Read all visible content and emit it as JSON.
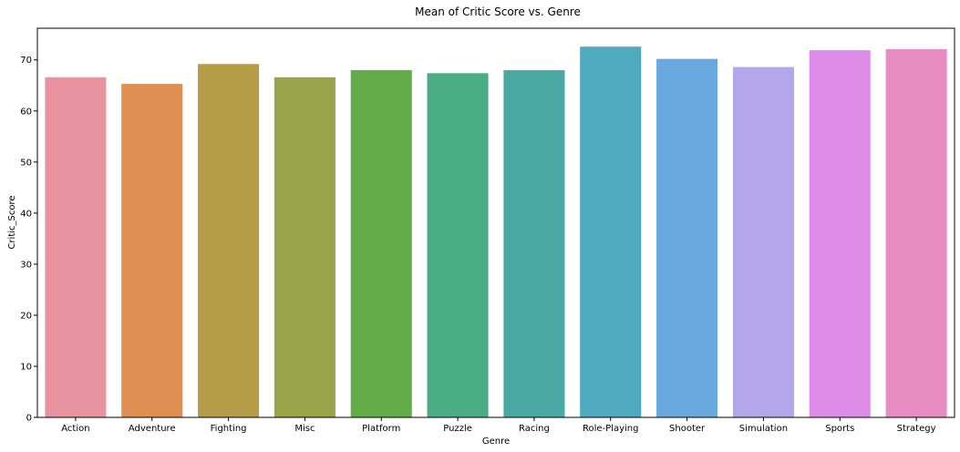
{
  "chart_data": {
    "type": "bar",
    "title": "Mean of Critic Score vs. Genre",
    "xlabel": "Genre",
    "ylabel": "Critic_Score",
    "categories": [
      "Action",
      "Adventure",
      "Fighting",
      "Misc",
      "Platform",
      "Puzzle",
      "Racing",
      "Role-Playing",
      "Shooter",
      "Simulation",
      "Sports",
      "Strategy"
    ],
    "values": [
      66.6,
      65.3,
      69.2,
      66.6,
      68.0,
      67.4,
      68.0,
      72.6,
      70.2,
      68.6,
      71.9,
      72.1
    ],
    "colors": [
      "#e8939f",
      "#e08f52",
      "#b59c48",
      "#99a348",
      "#62ad48",
      "#4bad84",
      "#4aa8a5",
      "#4fa9bf",
      "#6aa8e0",
      "#b4a6ea",
      "#de8de8",
      "#e88dc4"
    ],
    "yticks": [
      0,
      10,
      20,
      30,
      40,
      50,
      60,
      70
    ],
    "ylim": [
      0,
      76.2
    ],
    "grid": false,
    "legend": "none"
  }
}
